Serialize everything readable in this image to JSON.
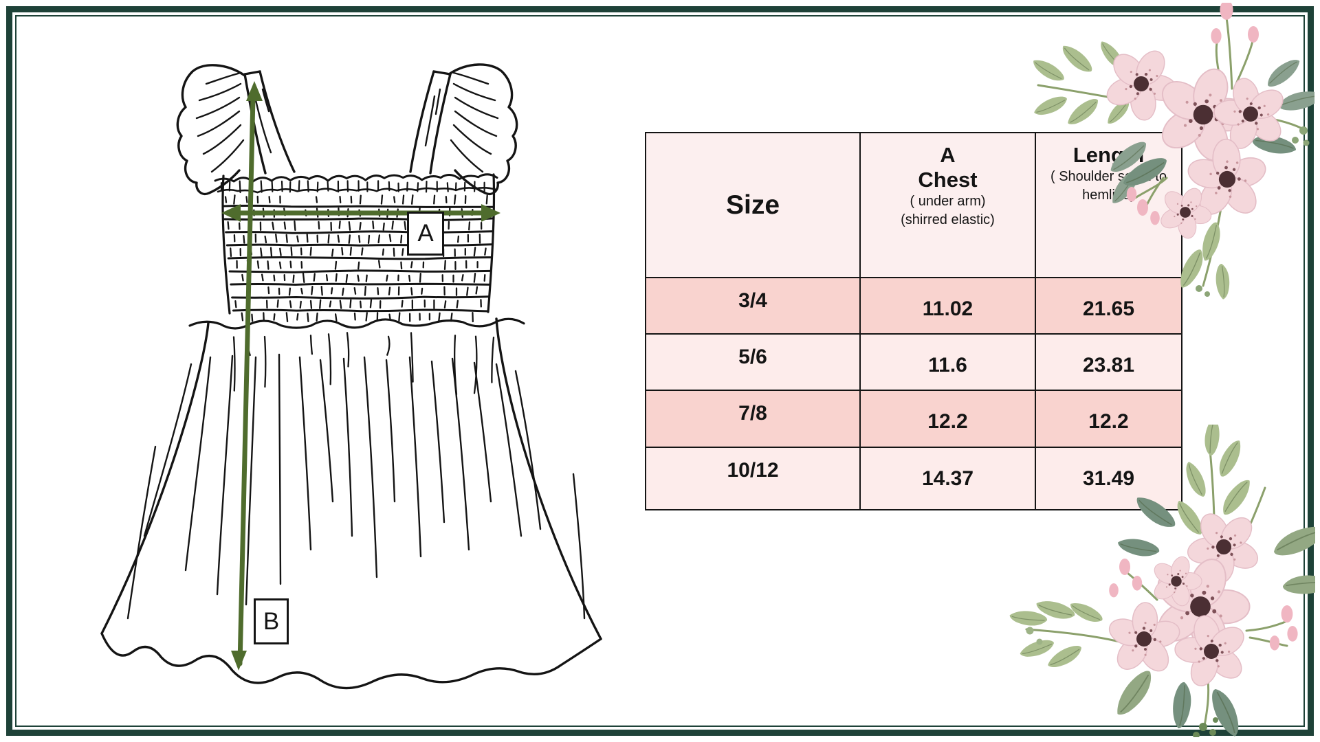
{
  "page": {
    "background": "#ffffff",
    "border_color": "#1e4238",
    "arrow_color": "#4f6c2d"
  },
  "diagram": {
    "label_a": "A",
    "label_b": "B"
  },
  "table": {
    "header_bg": "#FCEFEF",
    "row_bg_dark": "#F9D3CF",
    "row_bg_light": "#FDECEB",
    "header": {
      "size_title": "Size",
      "chest_line1": "A",
      "chest_line2": "Chest",
      "chest_sub1": "( under arm)",
      "chest_sub2": "(shirred elastic)",
      "length_line1": "Length",
      "length_sub1": "( Shoulder seam to",
      "length_sub2": "hemline)"
    },
    "rows": [
      {
        "size": "3/4",
        "chest": "11.02",
        "length": "21.65"
      },
      {
        "size": "5/6",
        "chest": "11.6",
        "length": "23.81"
      },
      {
        "size": "7/8",
        "chest": "12.2",
        "length": "12.2"
      },
      {
        "size": "10/12",
        "chest": "14.37",
        "length": "31.49"
      }
    ]
  },
  "chart_data": {
    "type": "table",
    "columns": [
      "Size",
      "A Chest ( under arm) (shirred elastic)",
      "Length ( Shoulder seam to hemline)"
    ],
    "rows": [
      [
        "3/4",
        "11.02",
        "21.65"
      ],
      [
        "5/6",
        "11.6",
        "23.81"
      ],
      [
        "7/8",
        "12.2",
        "12.2"
      ],
      [
        "10/12",
        "14.37",
        "31.49"
      ]
    ]
  }
}
